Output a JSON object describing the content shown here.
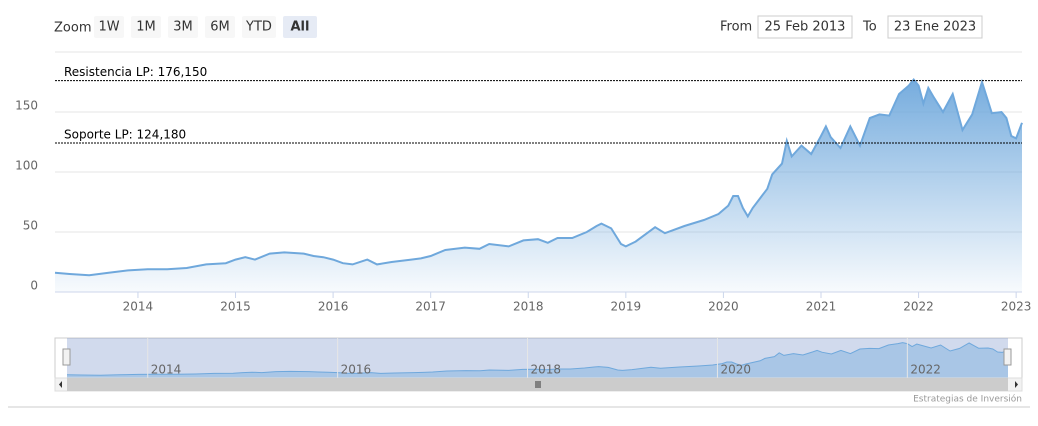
{
  "range_selector": {
    "label": "Zoom",
    "buttons": [
      "1W",
      "1M",
      "3M",
      "6M",
      "YTD",
      "All"
    ],
    "selected": 5
  },
  "date_input": {
    "from_label": "From",
    "from": "25 Feb 2013",
    "to_label": "To",
    "to": "23 Ene 2023"
  },
  "credits": "Estrategias de Inversión",
  "chart_data": {
    "type": "area",
    "color": "#6fa8dc",
    "x": [
      2013.15,
      2013.3,
      2013.5,
      2013.7,
      2013.9,
      2014.1,
      2014.3,
      2014.5,
      2014.7,
      2014.9,
      2015.0,
      2015.1,
      2015.2,
      2015.35,
      2015.5,
      2015.7,
      2015.8,
      2015.9,
      2016.0,
      2016.1,
      2016.2,
      2016.35,
      2016.45,
      2016.6,
      2016.8,
      2016.9,
      2017.0,
      2017.15,
      2017.35,
      2017.5,
      2017.6,
      2017.8,
      2017.95,
      2018.1,
      2018.2,
      2018.3,
      2018.45,
      2018.6,
      2018.7,
      2018.75,
      2018.85,
      2018.95,
      2019.0,
      2019.1,
      2019.3,
      2019.4,
      2019.6,
      2019.8,
      2019.95,
      2020.05,
      2020.1,
      2020.15,
      2020.2,
      2020.25,
      2020.3,
      2020.45,
      2020.5,
      2020.6,
      2020.65,
      2020.7,
      2020.8,
      2020.9,
      2021.0,
      2021.05,
      2021.1,
      2021.2,
      2021.3,
      2021.4,
      2021.5,
      2021.6,
      2021.7,
      2021.8,
      2021.9,
      2021.95,
      2022.0,
      2022.05,
      2022.1,
      2022.15,
      2022.25,
      2022.35,
      2022.4,
      2022.45,
      2022.55,
      2022.65,
      2022.7,
      2022.75,
      2022.85,
      2022.9,
      2022.95,
      2023.0,
      2023.06
    ],
    "values": [
      16,
      15,
      14,
      16,
      18,
      19,
      19,
      20,
      23,
      24,
      27,
      29,
      27,
      32,
      33,
      32,
      30,
      29,
      27,
      24,
      23,
      27,
      23,
      25,
      27,
      28,
      30,
      35,
      37,
      36,
      40,
      38,
      43,
      44,
      41,
      45,
      45,
      50,
      55,
      57,
      53,
      40,
      38,
      42,
      54,
      49,
      55,
      60,
      65,
      72,
      80,
      80,
      70,
      63,
      70,
      86,
      98,
      107,
      126,
      113,
      122,
      115,
      130,
      138,
      129,
      120,
      138,
      122,
      145,
      148,
      147,
      165,
      172,
      177,
      172,
      157,
      170,
      163,
      150,
      165,
      150,
      135,
      148,
      175,
      162,
      149,
      150,
      145,
      130,
      128,
      141
    ],
    "xlim": [
      2013.15,
      2023.06
    ],
    "xticks": [
      2014,
      2015,
      2016,
      2017,
      2018,
      2019,
      2020,
      2021,
      2022,
      2023
    ],
    "ylim": [
      0,
      200
    ],
    "yticks": [
      0,
      50,
      100,
      150
    ],
    "grid": true,
    "plot_lines": [
      {
        "value": 176.15,
        "label": "Resistencia LP: 176,150"
      },
      {
        "value": 124.18,
        "label": "Soporte LP: 124,180"
      }
    ],
    "navigator_xticks": [
      2014,
      2016,
      2018,
      2020,
      2022
    ]
  }
}
